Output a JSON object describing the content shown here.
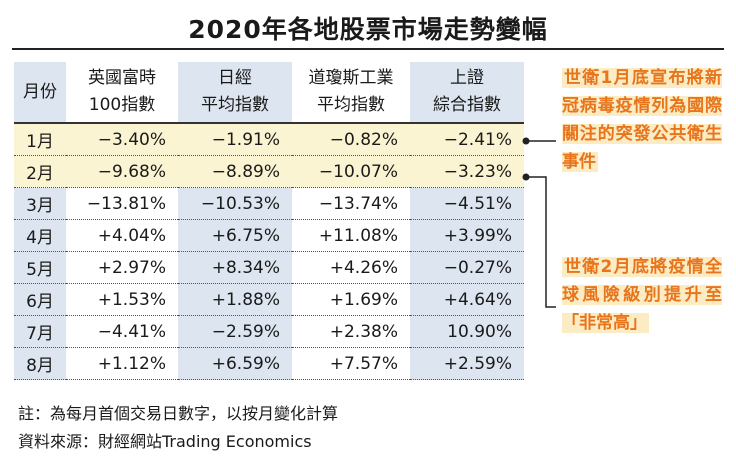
{
  "title": "2020年各地股票市場走勢變幅",
  "table": {
    "headers": [
      {
        "line1": "月份",
        "line2": ""
      },
      {
        "line1": "英國富時",
        "line2": "100指數"
      },
      {
        "line1": "日經",
        "line2": "平均指數"
      },
      {
        "line1": "道瓊斯工業",
        "line2": "平均指數"
      },
      {
        "line1": "上證",
        "line2": "綜合指數"
      }
    ],
    "rows": [
      {
        "month": "1月",
        "ftse": "−3.40%",
        "nikkei": "−1.91%",
        "dow": "−0.82%",
        "sse": "−2.41%"
      },
      {
        "month": "2月",
        "ftse": "−9.68%",
        "nikkei": "−8.89%",
        "dow": "−10.07%",
        "sse": "−3.23%"
      },
      {
        "month": "3月",
        "ftse": "−13.81%",
        "nikkei": "−10.53%",
        "dow": "−13.74%",
        "sse": "−4.51%"
      },
      {
        "month": "4月",
        "ftse": "+4.04%",
        "nikkei": "+6.75%",
        "dow": "+11.08%",
        "sse": "+3.99%"
      },
      {
        "month": "5月",
        "ftse": "+2.97%",
        "nikkei": "+8.34%",
        "dow": "+4.26%",
        "sse": "−0.27%"
      },
      {
        "month": "6月",
        "ftse": "+1.53%",
        "nikkei": "+1.88%",
        "dow": "+1.69%",
        "sse": "+4.64%"
      },
      {
        "month": "7月",
        "ftse": "−4.41%",
        "nikkei": "−2.59%",
        "dow": "+2.38%",
        "sse": "10.90%"
      },
      {
        "month": "8月",
        "ftse": "+1.12%",
        "nikkei": "+6.59%",
        "dow": "+7.57%",
        "sse": "+2.59%"
      }
    ]
  },
  "notes": {
    "note": "註：為每月首個交易日數字，以按月變化計算",
    "source": "資料來源：財經網站Trading Economics"
  },
  "callouts": {
    "jan": "世衛1月底宣布將新冠病毒疫情列為國際關注的突發公共衛生事件",
    "feb": "世衛2月底將疫情全球風險級別提升至「非常高」"
  },
  "colors": {
    "accent": "#e8741c",
    "callout_bg": "#fcecc4",
    "highlight_row": "#fbf4d3",
    "column_tint": "#dde6f0"
  }
}
